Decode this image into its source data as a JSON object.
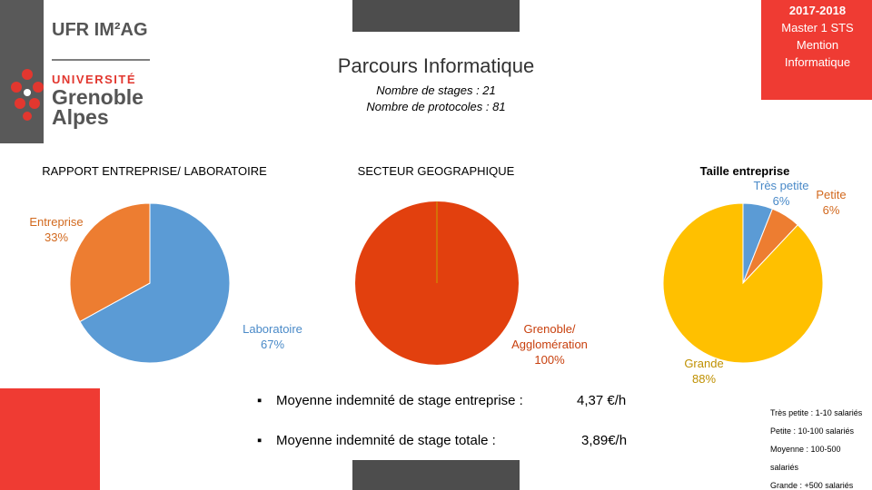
{
  "header": {
    "logo": {
      "ufr": "UFR IM²AG",
      "universite": "UNIVERSITÉ",
      "city1": "Grenoble",
      "city2": "Alpes"
    },
    "title": "Parcours Informatique",
    "stages": "Nombre de stages : 21",
    "protocoles": "Nombre de protocoles : 81",
    "badge": [
      "2017-2018",
      "Master 1 STS",
      "Mention",
      "Informatique"
    ]
  },
  "chart_data": [
    {
      "type": "pie",
      "title": "RAPPORT ENTREPRISE/ LABORATOIRE",
      "categories": [
        "Laboratoire",
        "Entreprise"
      ],
      "values": [
        67,
        33
      ],
      "value_labels": [
        "67%",
        "33%"
      ],
      "colors": [
        "#5b9bd5",
        "#ed7d31"
      ]
    },
    {
      "type": "pie",
      "title": "SECTEUR GEOGRAPHIQUE",
      "categories": [
        "Grenoble/ Agglomération"
      ],
      "values": [
        100
      ],
      "value_labels": [
        "100%"
      ],
      "colors": [
        "#e2400e"
      ]
    },
    {
      "type": "pie",
      "title": "Taille entreprise",
      "categories": [
        "Très petite",
        "Petite",
        "Grande"
      ],
      "values": [
        6,
        6,
        88
      ],
      "value_labels": [
        "6%",
        "6%",
        "88%"
      ],
      "colors": [
        "#5b9bd5",
        "#ed7d31",
        "#ffc000"
      ]
    }
  ],
  "stats": [
    {
      "label": "Moyenne indemnité de stage entreprise :",
      "value": "4,37 €/h"
    },
    {
      "label": "Moyenne indemnité de stage totale :",
      "value": "3,89€/h"
    }
  ],
  "notes": [
    "Très petite : 1-10 salariés",
    "Petite : 10-100 salariés",
    "Moyenne : 100-500 salariés",
    "Grande : +500 salariés"
  ]
}
